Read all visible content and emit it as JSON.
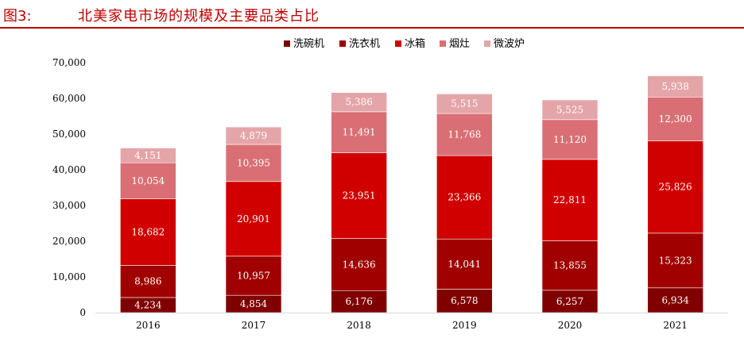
{
  "figure": {
    "label": "图3:",
    "title": "北美家电市场的规模及主要品类占比"
  },
  "chart_data": {
    "type": "bar",
    "stacked": true,
    "categories": [
      "2016",
      "2017",
      "2018",
      "2019",
      "2020",
      "2021"
    ],
    "series": [
      {
        "name": "洗碗机",
        "color": "#800000",
        "values": [
          4234,
          4854,
          6176,
          6578,
          6257,
          6934
        ]
      },
      {
        "name": "洗衣机",
        "color": "#a00000",
        "values": [
          8986,
          10957,
          14636,
          14041,
          13855,
          15323
        ]
      },
      {
        "name": "冰箱",
        "color": "#d00000",
        "values": [
          18682,
          20901,
          23951,
          23366,
          22811,
          25826
        ]
      },
      {
        "name": "烟灶",
        "color": "#d96f74",
        "values": [
          10054,
          10395,
          11491,
          11768,
          11120,
          12300
        ]
      },
      {
        "name": "微波炉",
        "color": "#e4a5a8",
        "values": [
          4151,
          4879,
          5386,
          5515,
          5525,
          5938
        ]
      }
    ],
    "data_labels": [
      [
        "4,234",
        "4,854",
        "6,176",
        "6,578",
        "6,257",
        "6,934"
      ],
      [
        "8,986",
        "10,957",
        "14,636",
        "14,041",
        "13,855",
        "15,323"
      ],
      [
        "18,682",
        "20,901",
        "23,951",
        "23,366",
        "22,811",
        "25,826"
      ],
      [
        "10,054",
        "10,395",
        "11,491",
        "11,768",
        "11,120",
        "12,300"
      ],
      [
        "4,151",
        "4,879",
        "5,386",
        "5,515",
        "5,525",
        "5,938"
      ]
    ],
    "label_colors": [
      "#ffffff",
      "#ffffff",
      "#ffffff",
      "#ffffff",
      "#ffffff"
    ],
    "ylim": [
      0,
      70000
    ],
    "yticks": [
      0,
      10000,
      20000,
      30000,
      40000,
      50000,
      60000,
      70000
    ],
    "ytick_labels": [
      "0",
      "10,000",
      "20,000",
      "30,000",
      "40,000",
      "50,000",
      "60,000",
      "70,000"
    ],
    "grid": false,
    "legend_position": "top-center"
  }
}
